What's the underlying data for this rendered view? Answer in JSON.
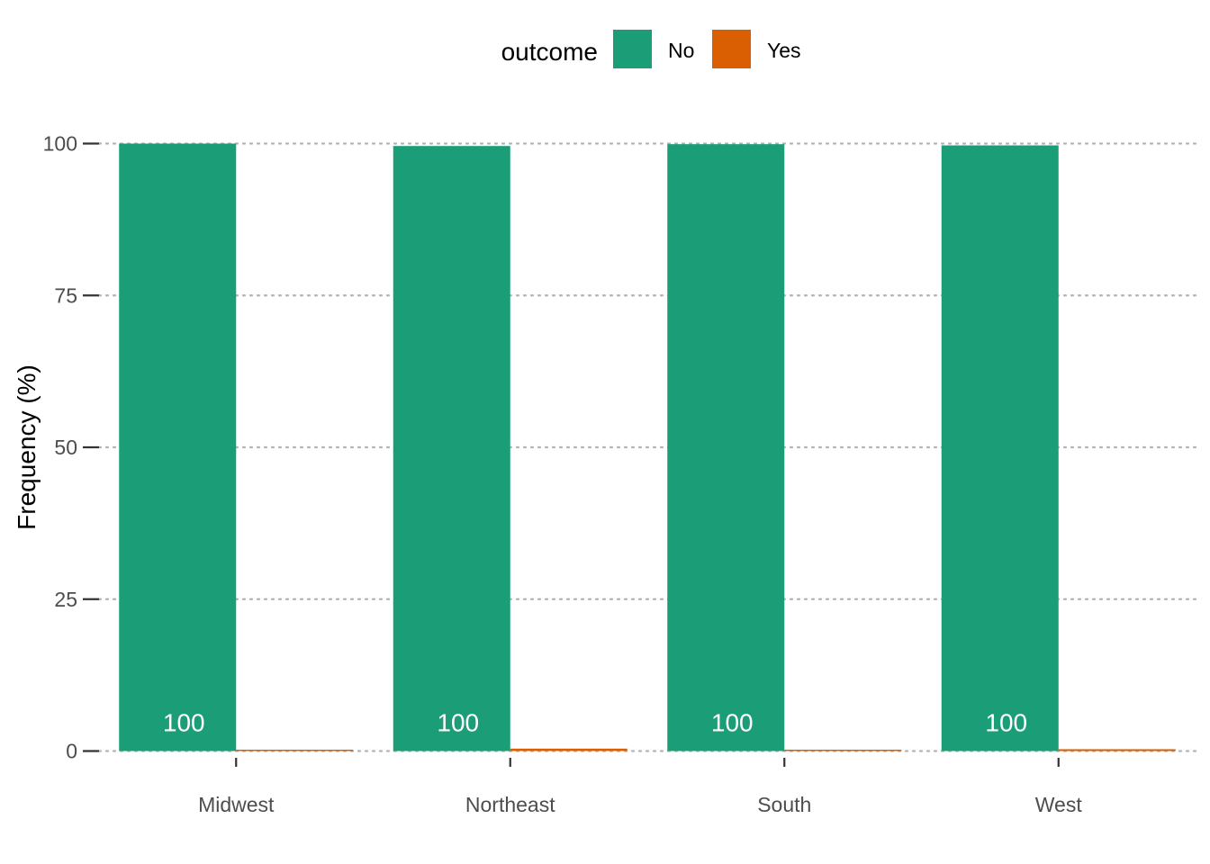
{
  "chart_data": {
    "type": "bar",
    "categories": [
      "Midwest",
      "Northeast",
      "South",
      "West"
    ],
    "series": [
      {
        "name": "No",
        "color": "#1b9e77",
        "values": [
          100,
          99.6,
          99.9,
          99.7
        ]
      },
      {
        "name": "Yes",
        "color": "#d95f02",
        "values": [
          0.1,
          0.4,
          0.1,
          0.3
        ]
      }
    ],
    "data_labels": [
      "100",
      "100",
      "100",
      "100"
    ],
    "ylabel": "Frequency (%)",
    "xlabel": "",
    "ylim": [
      0,
      100
    ],
    "yticks": [
      0,
      25,
      50,
      75,
      100
    ],
    "ytick_labels": [
      "0",
      "25",
      "50",
      "75",
      "100"
    ],
    "grid": "horizontal dotted",
    "legend": {
      "title": "outcome",
      "position": "top"
    }
  }
}
